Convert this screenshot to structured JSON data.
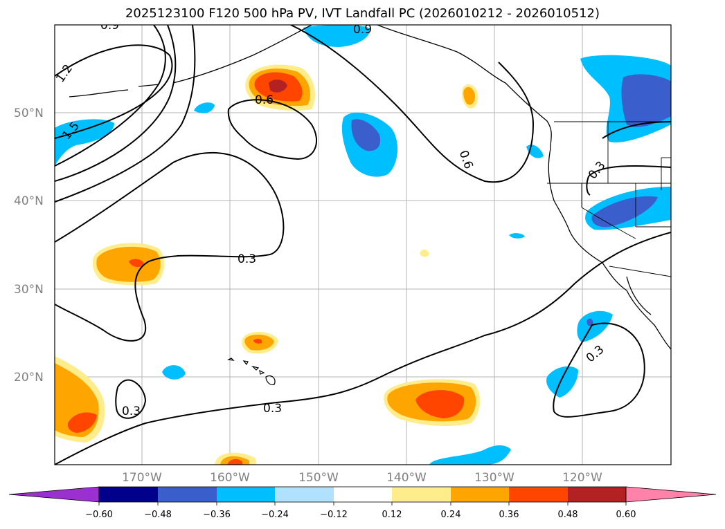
{
  "title": "2025123100 F120 500 hPa PV, IVT Landfall PC (2026010212 - 2026010512)",
  "map": {
    "lat_labels": [
      "50°N",
      "40°N",
      "30°N",
      "20°N"
    ],
    "lon_labels": [
      "170°W",
      "160°W",
      "150°W",
      "140°W",
      "130°W",
      "120°W"
    ],
    "contour_labels": [
      "0.9",
      "1.2",
      "1.5",
      "0.6",
      "0.9",
      "0.6",
      "0.3",
      "0.3",
      "0.3",
      "0.3",
      "0.3"
    ]
  },
  "colorbar": {
    "ticks": [
      "−0.60",
      "−0.48",
      "−0.36",
      "−0.24",
      "−0.12",
      "0.12",
      "0.24",
      "0.36",
      "0.48",
      "0.60"
    ],
    "colors": [
      "#9b30d0",
      "#00008b",
      "#3a5fcd",
      "#00bfff",
      "#b0e2ff",
      "#ffffff",
      "#ffec8b",
      "#ffa500",
      "#ff4500",
      "#b22222",
      "#ff82ab"
    ]
  }
}
